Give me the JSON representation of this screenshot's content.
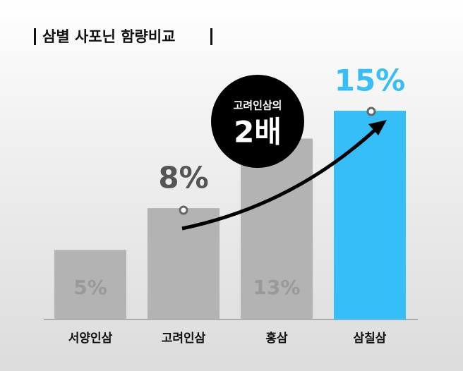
{
  "chart_data": {
    "type": "bar",
    "title": "삼별 사포닌 함량비교",
    "categories": [
      "서양인삼",
      "고려인삼",
      "홍삼",
      "삼칠삼"
    ],
    "values": [
      5,
      8,
      13,
      15
    ],
    "value_labels": [
      "5%",
      "8%",
      "13%",
      "15%"
    ],
    "colors": [
      "#b3b3b3",
      "#b3b3b3",
      "#b3b3b3",
      "#35bef8"
    ],
    "ylim": [
      0,
      15
    ],
    "annotations": [
      "고려인삼의",
      "2배"
    ]
  }
}
